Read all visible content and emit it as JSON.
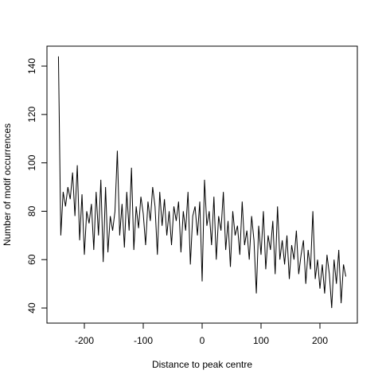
{
  "chart_data": {
    "type": "line",
    "xlabel": "Distance to peak centre",
    "ylabel": "Number of motif occurrences",
    "color": "#000000",
    "xlim": [
      -263.52,
      263.52
    ],
    "ylim": [
      33.76,
      148.24
    ],
    "xticks": [
      -200,
      -100,
      0,
      100,
      200
    ],
    "yticks": [
      40,
      60,
      80,
      100,
      120,
      140
    ],
    "x": [
      -244,
      -240,
      -236,
      -232,
      -228,
      -224,
      -220,
      -216,
      -212,
      -208,
      -204,
      -200,
      -196,
      -192,
      -188,
      -184,
      -180,
      -176,
      -172,
      -168,
      -164,
      -160,
      -156,
      -152,
      -148,
      -144,
      -140,
      -136,
      -132,
      -128,
      -124,
      -120,
      -116,
      -112,
      -108,
      -104,
      -100,
      -96,
      -92,
      -88,
      -84,
      -80,
      -76,
      -72,
      -68,
      -64,
      -60,
      -56,
      -52,
      -48,
      -44,
      -40,
      -36,
      -32,
      -28,
      -24,
      -20,
      -16,
      -12,
      -8,
      -4,
      0,
      4,
      8,
      12,
      16,
      20,
      24,
      28,
      32,
      36,
      40,
      44,
      48,
      52,
      56,
      60,
      64,
      68,
      72,
      76,
      80,
      84,
      88,
      92,
      96,
      100,
      104,
      108,
      112,
      116,
      120,
      124,
      128,
      132,
      136,
      140,
      144,
      148,
      152,
      156,
      160,
      164,
      168,
      172,
      176,
      180,
      184,
      188,
      192,
      196,
      200,
      204,
      208,
      212,
      216,
      220,
      224,
      228,
      232,
      236,
      240,
      244
    ],
    "series": [
      {
        "name": null,
        "color": "#000000",
        "values": [
          144,
          70,
          88,
          82,
          90,
          85,
          96,
          78,
          99,
          68,
          87,
          62,
          80,
          75,
          83,
          64,
          88,
          70,
          93,
          59,
          90,
          63,
          78,
          72,
          80,
          105,
          70,
          83,
          65,
          88,
          72,
          98,
          64,
          82,
          73,
          86,
          79,
          66,
          84,
          76,
          90,
          82,
          62,
          88,
          74,
          85,
          70,
          80,
          66,
          82,
          76,
          84,
          63,
          80,
          72,
          88,
          58,
          78,
          82,
          70,
          84,
          51,
          93,
          74,
          80,
          66,
          86,
          60,
          78,
          72,
          88,
          64,
          76,
          57,
          80,
          70,
          74,
          62,
          84,
          66,
          72,
          60,
          78,
          68,
          46,
          74,
          62,
          80,
          56,
          70,
          64,
          76,
          54,
          82,
          60,
          68,
          58,
          70,
          52,
          66,
          60,
          72,
          54,
          62,
          68,
          50,
          64,
          56,
          80,
          52,
          60,
          48,
          58,
          46,
          62,
          54,
          40,
          60,
          50,
          64,
          42,
          58,
          53
        ]
      }
    ]
  }
}
